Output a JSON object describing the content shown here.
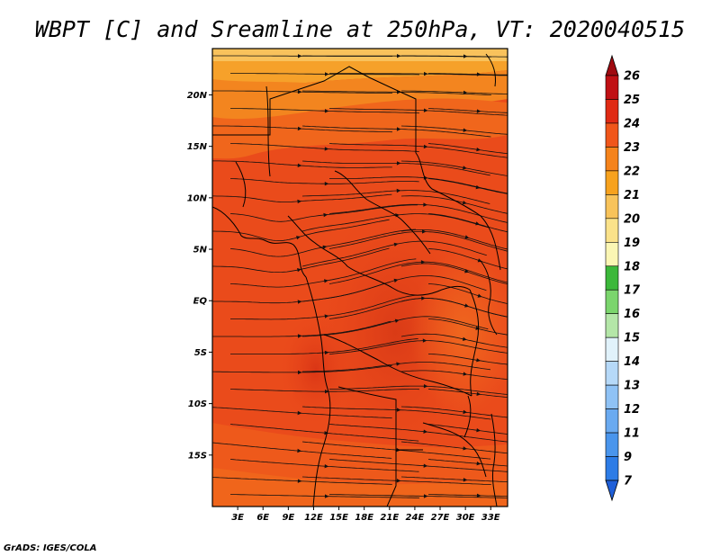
{
  "title": "WBPT [C] and Sreamline at 250hPa, VT: 2020040515",
  "credit": "GrADS: IGES/COLA",
  "lat_labels": [
    "20N",
    "15N",
    "10N",
    "5N",
    "EQ",
    "5S",
    "10S",
    "15S"
  ],
  "lon_labels": [
    "3E",
    "6E",
    "9E",
    "12E",
    "15E",
    "18E",
    "21E",
    "24E",
    "27E",
    "30E",
    "33E"
  ],
  "colorbar": {
    "labels": [
      "7",
      "9",
      "11",
      "12",
      "13",
      "14",
      "15",
      "16",
      "17",
      "18",
      "19",
      "20",
      "21",
      "22",
      "23",
      "24",
      "25",
      "26"
    ],
    "colors": [
      "#1f5fd8",
      "#2d7ce6",
      "#4a95ec",
      "#6aaaf0",
      "#8fc2f5",
      "#b6d9f8",
      "#e1f2fb",
      "#b4e6a8",
      "#7bd56d",
      "#3cb83a",
      "#fbf6b4",
      "#fbe28a",
      "#f8c35a",
      "#f7a21e",
      "#f5831b",
      "#f0561a",
      "#e02a14",
      "#c01014",
      "#9f0a10"
    ]
  },
  "map": {
    "lat_range": [
      -20,
      24.5
    ],
    "lon_range": [
      0,
      35
    ]
  }
}
